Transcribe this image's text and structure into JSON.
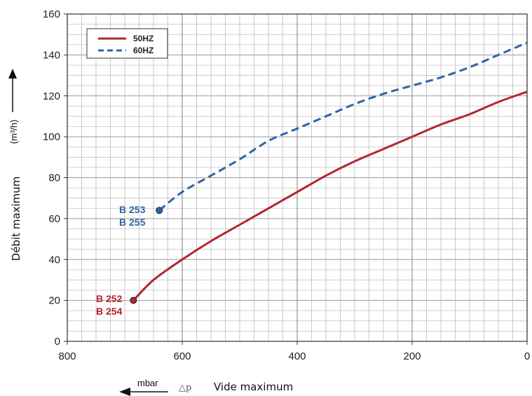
{
  "chart_data": {
    "type": "line",
    "xlabel": "Vide maximum",
    "ylabel": "Débit maximum",
    "y_unit": "(m³/h)",
    "x_unit": "mbar",
    "x_symbol": "△p",
    "xlim": [
      800,
      0
    ],
    "ylim": [
      0,
      160
    ],
    "x_reversed": true,
    "x_ticks": [
      "800",
      "600",
      "400",
      "200",
      "0"
    ],
    "y_ticks": [
      "0",
      "20",
      "40",
      "60",
      "80",
      "100",
      "120",
      "140",
      "160"
    ],
    "grid": true,
    "legend_position": "top-left",
    "series": [
      {
        "name": "50HZ",
        "color": "#b3262e",
        "style": "solid",
        "x": [
          685,
          650,
          600,
          550,
          500,
          450,
          400,
          350,
          300,
          250,
          200,
          150,
          100,
          50,
          0
        ],
        "y": [
          20,
          30,
          40,
          49,
          57,
          65,
          73,
          81,
          88,
          94,
          100,
          106,
          111,
          117,
          122
        ],
        "end_labels": [
          "B 252",
          "B 254"
        ]
      },
      {
        "name": "60HZ",
        "color": "#2f64a8",
        "style": "dashed",
        "x": [
          640,
          600,
          550,
          500,
          450,
          400,
          350,
          300,
          250,
          200,
          150,
          100,
          50,
          0
        ],
        "y": [
          64,
          73,
          81,
          89,
          98,
          104,
          110,
          116,
          121,
          125,
          129,
          134,
          140,
          146
        ],
        "end_labels": [
          "B 253",
          "B 255"
        ]
      }
    ]
  }
}
